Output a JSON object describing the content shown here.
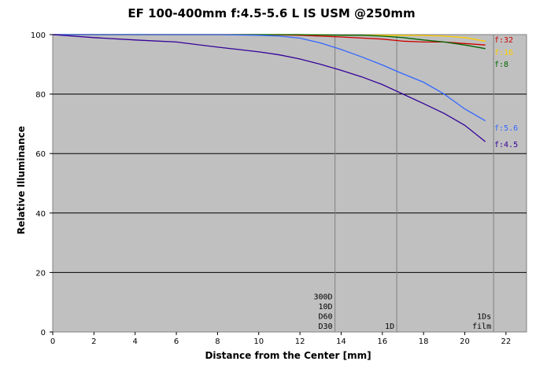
{
  "chart_data": {
    "type": "line",
    "title": "EF 100-400mm f:4.5-5.6 L IS USM  @250mm",
    "xlabel": "Distance from the Center [mm]",
    "ylabel": "Relative Illuminance",
    "xlim": [
      0,
      23
    ],
    "ylim": [
      0,
      100
    ],
    "xticks": [
      "0",
      "2",
      "4",
      "6",
      "8",
      "10",
      "12",
      "14",
      "16",
      "18",
      "20",
      "22"
    ],
    "yticks": [
      "0",
      "20",
      "40",
      "60",
      "80",
      "100"
    ],
    "grid": "horizontal",
    "plot_background": "#c0c0c0",
    "series": [
      {
        "name": "f:32",
        "color": "#cc0000",
        "x": [
          0,
          2,
          4,
          6,
          8,
          10,
          12,
          14,
          16,
          17,
          18,
          19,
          20,
          21
        ],
        "y": [
          100,
          100,
          100,
          100,
          100,
          100,
          99.8,
          99.2,
          98.5,
          97.8,
          97.5,
          97.5,
          97,
          96.5
        ]
      },
      {
        "name": "f:16",
        "color": "#ffcc00",
        "x": [
          0,
          2,
          4,
          6,
          8,
          10,
          12,
          14,
          16,
          18,
          19,
          20,
          21
        ],
        "y": [
          100,
          100,
          100,
          100,
          100,
          100,
          100,
          99.8,
          99.8,
          99.7,
          99.5,
          99,
          97.8
        ]
      },
      {
        "name": "f:8",
        "color": "#006600",
        "x": [
          0,
          2,
          4,
          6,
          8,
          10,
          12,
          14,
          15,
          16,
          17,
          18,
          19,
          20,
          21
        ],
        "y": [
          100,
          100,
          100,
          100,
          100,
          100,
          100,
          99.8,
          99.8,
          99.5,
          99,
          98.2,
          97.5,
          96.5,
          95.3
        ]
      },
      {
        "name": "f:5.6",
        "color": "#3366ff",
        "x": [
          0,
          2,
          4,
          6,
          8,
          10,
          11,
          12,
          13,
          14,
          15,
          16,
          17,
          18,
          19,
          20,
          21
        ],
        "y": [
          100,
          100,
          100,
          100,
          100,
          99.8,
          99.5,
          98.8,
          97.2,
          95,
          92.5,
          89.8,
          86.8,
          84,
          80,
          75,
          71
        ]
      },
      {
        "name": "f:4.5",
        "color": "#330099",
        "x": [
          0,
          2,
          4,
          6,
          8,
          10,
          11,
          12,
          13,
          14,
          15,
          16,
          17,
          18,
          19,
          20,
          21
        ],
        "y": [
          100,
          99,
          98.2,
          97.5,
          95.8,
          94.2,
          93.2,
          91.8,
          90,
          88,
          85.8,
          83.2,
          80,
          76.8,
          73.5,
          69.5,
          64
        ]
      }
    ],
    "sensor_markers": [
      {
        "x": 13.7,
        "labels": [
          "300D",
          "10D",
          "D60",
          "D30"
        ]
      },
      {
        "x": 16.7,
        "labels": [
          "1D"
        ]
      },
      {
        "x": 21.4,
        "labels": [
          "1Ds",
          "film"
        ]
      }
    ]
  }
}
